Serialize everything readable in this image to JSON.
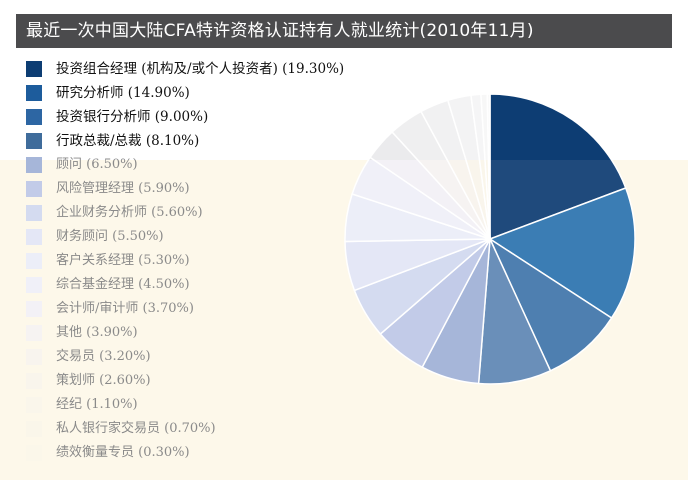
{
  "chart_data": {
    "type": "pie",
    "title": "最近一次中国大陆CFA特许资格认证持有人就业统计(2010年11月)",
    "slices": [
      {
        "label": "投资组合经理 (机构及/或个人投资者) (19.30%)",
        "value": 19.3,
        "color": "#1f4a7c"
      },
      {
        "label": "研究分析师 (14.90%)",
        "value": 14.9,
        "color": "#3b7db4"
      },
      {
        "label": "投资银行分析师 (9.00%)",
        "value": 9.0,
        "color": "#4e7fb0"
      },
      {
        "label": "行政总裁/总裁 (8.10%)",
        "value": 8.1,
        "color": "#6a8fb9"
      },
      {
        "label": "顾问 (6.50%)",
        "value": 6.5,
        "color": "#a6b6d9"
      },
      {
        "label": "风险管理经理 (5.90%)",
        "value": 5.9,
        "color": "#c2cbe8"
      },
      {
        "label": "企业财务分析师 (5.60%)",
        "value": 5.6,
        "color": "#d4dbf0"
      },
      {
        "label": "财务顾问 (5.50%)",
        "value": 5.5,
        "color": "#e4e7f6"
      },
      {
        "label": "客户关系经理 (5.30%)",
        "value": 5.3,
        "color": "#eceef8"
      },
      {
        "label": "综合基金经理 (4.50%)",
        "value": 4.5,
        "color": "#f0f0f8"
      },
      {
        "label": "会计师/审计师 (3.70%)",
        "value": 3.7,
        "color": "#f3f1f6"
      },
      {
        "label": "其他 (3.90%)",
        "value": 3.9,
        "color": "#f6f3f2"
      },
      {
        "label": "交易员 (3.20%)",
        "value": 3.2,
        "color": "#f8f4ee"
      },
      {
        "label": "策划师 (2.60%)",
        "value": 2.6,
        "color": "#f9f5ec"
      },
      {
        "label": "经纪 (1.10%)",
        "value": 1.1,
        "color": "#faf6eb"
      },
      {
        "label": "私人银行家交易员 (0.70%)",
        "value": 0.7,
        "color": "#faf6ea"
      },
      {
        "label": "绩效衡量专员 (0.30%)",
        "value": 0.3,
        "color": "#fbf7ea"
      }
    ],
    "legend_placement": "left"
  },
  "colors": {
    "title_bg": "#4b4b4d",
    "cream_bg": "#fdf8ea",
    "upper_pie_colors": [
      "#0d3d73",
      "#1d5c9c",
      "#2d66a3",
      "#3f6c9b",
      "#e0e4ec",
      "#cfd1d5",
      "#c4c5c8",
      "#d2d3d6",
      "#dddee0",
      "#e5e5e7",
      "#ebebed",
      "#efeff0",
      "#f1f1f2",
      "#f3f3f4",
      "#f5f5f6",
      "#f7f7f7",
      "#f9f9f9"
    ]
  }
}
